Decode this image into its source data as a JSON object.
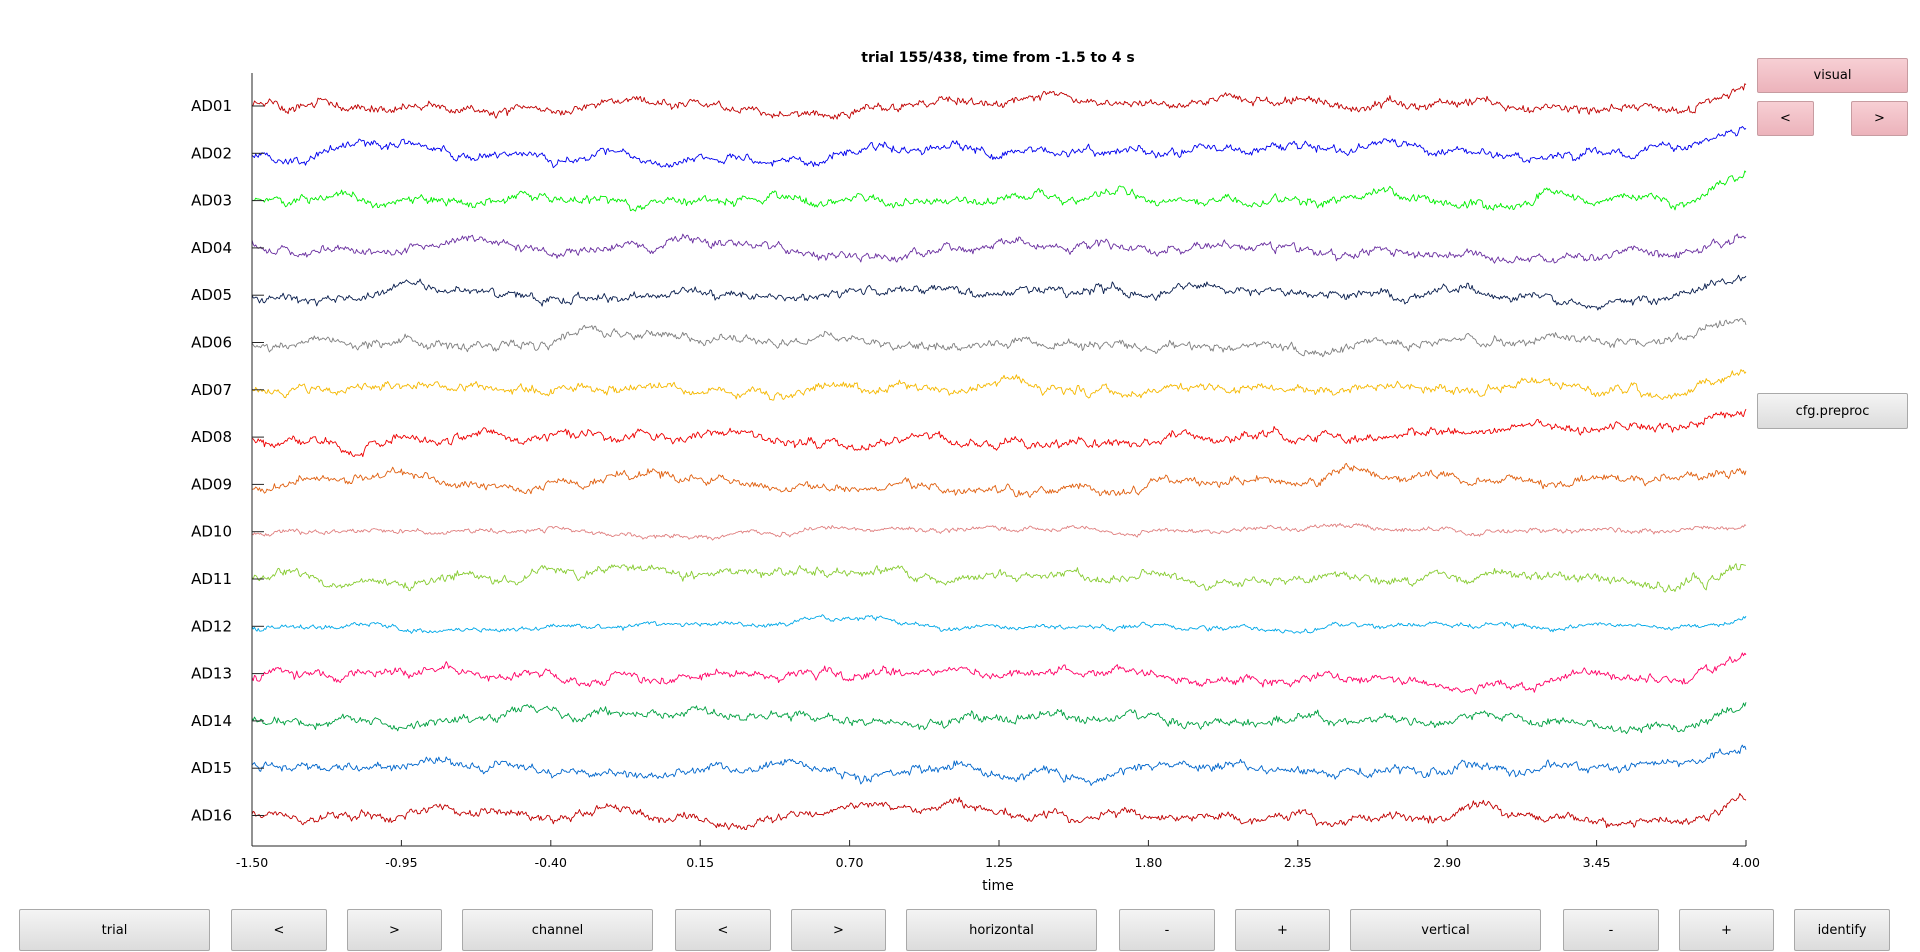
{
  "figure": {
    "title": "trial 155/438, time from -1.5 to 4 s",
    "xlabel": "time"
  },
  "side_panel": {
    "artifact_label": "visual",
    "prev_label": "<",
    "next_label": ">",
    "preproc_label": "cfg.preproc"
  },
  "toolbar": {
    "trial_label": "trial",
    "trial_prev": "<",
    "trial_next": ">",
    "channel_label": "channel",
    "channel_prev": "<",
    "channel_next": ">",
    "horizontal_label": "horizontal",
    "horizontal_minus": "-",
    "horizontal_plus": "+",
    "vertical_label": "vertical",
    "vertical_minus": "-",
    "vertical_plus": "+",
    "identify_label": "identify"
  },
  "chart_data": {
    "type": "line",
    "title": "trial 155/438, time from -1.5 to 4 s",
    "xlabel": "time",
    "ylabel": "",
    "xlim": [
      -1.5,
      4.0
    ],
    "xticks": [
      "-1.50",
      "-0.95",
      "-0.40",
      "0.15",
      "0.70",
      "1.25",
      "1.80",
      "2.35",
      "2.90",
      "3.45",
      "4.00"
    ],
    "grid": false,
    "series": [
      {
        "name": "AD01",
        "color": "#c00000"
      },
      {
        "name": "AD02",
        "color": "#0000ee"
      },
      {
        "name": "AD03",
        "color": "#00ee00"
      },
      {
        "name": "AD04",
        "color": "#6a2fa0"
      },
      {
        "name": "AD05",
        "color": "#0a1f4f"
      },
      {
        "name": "AD06",
        "color": "#808080"
      },
      {
        "name": "AD07",
        "color": "#f5b800"
      },
      {
        "name": "AD08",
        "color": "#ee0000"
      },
      {
        "name": "AD09",
        "color": "#e06010"
      },
      {
        "name": "AD10",
        "color": "#e08080"
      },
      {
        "name": "AD11",
        "color": "#88cc33"
      },
      {
        "name": "AD12",
        "color": "#00a8e8"
      },
      {
        "name": "AD13",
        "color": "#ff0066"
      },
      {
        "name": "AD14",
        "color": "#00a040"
      },
      {
        "name": "AD15",
        "color": "#0066cc"
      },
      {
        "name": "AD16",
        "color": "#c00000"
      }
    ]
  }
}
